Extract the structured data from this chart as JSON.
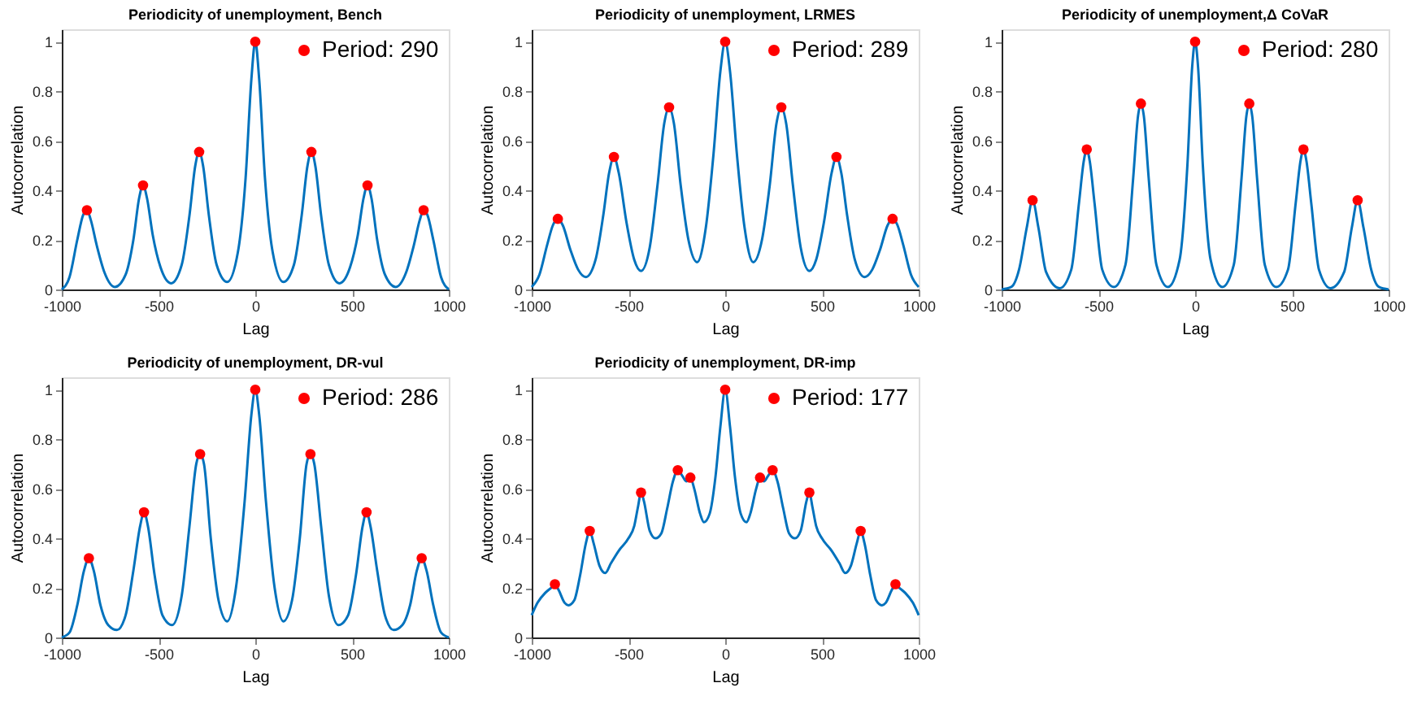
{
  "chart_data": [
    {
      "type": "line",
      "title": "Periodicity of unemployment, Bench",
      "xlabel": "Lag",
      "ylabel": "Autocorrelation",
      "xlim": [
        -1000,
        1000
      ],
      "xticks": [
        -1000,
        -500,
        0,
        500,
        1000
      ],
      "ylim": [
        0,
        1.05
      ],
      "yticks": [
        0,
        0.2,
        0.4,
        0.6,
        0.8,
        1
      ],
      "grid": false,
      "legend": "top right",
      "series": [
        {
          "type": "line",
          "color": "#0072bd",
          "x": [
            -1000,
            -960,
            -920,
            -890,
            -870,
            -850,
            -820,
            -780,
            -725,
            -670,
            -630,
            -600,
            -580,
            -560,
            -530,
            -490,
            -435,
            -380,
            -340,
            -310,
            -290,
            -270,
            -240,
            -200,
            -145,
            -90,
            -50,
            -20,
            0,
            20,
            50,
            90,
            145,
            200,
            240,
            270,
            290,
            310,
            340,
            380,
            435,
            490,
            530,
            560,
            580,
            600,
            630,
            670,
            725,
            780,
            820,
            850,
            870,
            890,
            920,
            960,
            1000
          ],
          "values": [
            0,
            0.05,
            0.2,
            0.3,
            0.32,
            0.28,
            0.18,
            0.07,
            0.01,
            0.06,
            0.2,
            0.37,
            0.42,
            0.37,
            0.22,
            0.09,
            0.025,
            0.1,
            0.3,
            0.5,
            0.555,
            0.5,
            0.3,
            0.1,
            0.03,
            0.15,
            0.45,
            0.85,
            1,
            0.85,
            0.45,
            0.15,
            0.03,
            0.1,
            0.3,
            0.5,
            0.555,
            0.5,
            0.3,
            0.1,
            0.025,
            0.09,
            0.22,
            0.37,
            0.42,
            0.37,
            0.2,
            0.06,
            0.01,
            0.07,
            0.18,
            0.28,
            0.32,
            0.3,
            0.2,
            0.05,
            0
          ]
        },
        {
          "type": "scatter",
          "name": "Period: 290",
          "color": "#ff0000",
          "marker": "circle",
          "x": [
            -870,
            -580,
            -290,
            0,
            290,
            580,
            870
          ],
          "values": [
            0.32,
            0.42,
            0.555,
            1,
            0.555,
            0.42,
            0.32
          ]
        }
      ]
    },
    {
      "type": "line",
      "title": "Periodicity of unemployment, LRMES",
      "xlabel": "Lag",
      "ylabel": "Autocorrelation",
      "xlim": [
        -1000,
        1000
      ],
      "xticks": [
        -1000,
        -500,
        0,
        500,
        1000
      ],
      "ylim": [
        0,
        1.05
      ],
      "yticks": [
        0,
        0.2,
        0.4,
        0.6,
        0.8,
        1
      ],
      "grid": false,
      "legend": "top right",
      "series": [
        {
          "type": "line",
          "color": "#0072bd",
          "x": [
            -1000,
            -960,
            -920,
            -890,
            -865,
            -840,
            -800,
            -760,
            -720,
            -670,
            -630,
            -600,
            -575,
            -550,
            -510,
            -470,
            -435,
            -390,
            -350,
            -315,
            -290,
            -265,
            -230,
            -190,
            -145,
            -100,
            -60,
            -25,
            0,
            25,
            60,
            100,
            145,
            190,
            230,
            265,
            290,
            315,
            350,
            390,
            435,
            470,
            510,
            550,
            575,
            600,
            630,
            670,
            720,
            760,
            800,
            840,
            865,
            890,
            920,
            960,
            1000
          ],
          "values": [
            0.01,
            0.06,
            0.18,
            0.26,
            0.285,
            0.26,
            0.16,
            0.08,
            0.05,
            0.12,
            0.3,
            0.47,
            0.535,
            0.47,
            0.27,
            0.12,
            0.075,
            0.17,
            0.42,
            0.67,
            0.735,
            0.67,
            0.42,
            0.2,
            0.11,
            0.25,
            0.55,
            0.88,
            1,
            0.88,
            0.55,
            0.25,
            0.11,
            0.2,
            0.42,
            0.67,
            0.735,
            0.67,
            0.42,
            0.17,
            0.075,
            0.12,
            0.27,
            0.47,
            0.535,
            0.47,
            0.3,
            0.12,
            0.05,
            0.08,
            0.16,
            0.26,
            0.285,
            0.26,
            0.18,
            0.06,
            0.01
          ]
        },
        {
          "type": "scatter",
          "name": "Period: 289",
          "color": "#ff0000",
          "marker": "circle",
          "x": [
            -865,
            -575,
            -290,
            0,
            290,
            575,
            865
          ],
          "values": [
            0.285,
            0.535,
            0.735,
            1,
            0.735,
            0.535,
            0.285
          ]
        }
      ]
    },
    {
      "type": "line",
      "title": "Periodicity of unemployment,Δ CoVaR",
      "xlabel": "Lag",
      "ylabel": "Autocorrelation",
      "xlim": [
        -1000,
        1000
      ],
      "xticks": [
        -1000,
        -500,
        0,
        500,
        1000
      ],
      "ylim": [
        0,
        1.05
      ],
      "yticks": [
        0,
        0.2,
        0.4,
        0.6,
        0.8,
        1
      ],
      "grid": false,
      "legend": "top right",
      "series": [
        {
          "type": "line",
          "color": "#0072bd",
          "x": [
            -1000,
            -950,
            -910,
            -870,
            -840,
            -810,
            -770,
            -700,
            -640,
            -600,
            -575,
            -560,
            -545,
            -520,
            -480,
            -420,
            -360,
            -320,
            -295,
            -280,
            -265,
            -240,
            -200,
            -140,
            -80,
            -40,
            -15,
            0,
            15,
            40,
            80,
            140,
            200,
            240,
            265,
            280,
            295,
            320,
            360,
            420,
            480,
            520,
            545,
            560,
            575,
            600,
            640,
            700,
            770,
            810,
            840,
            870,
            910,
            950,
            1000
          ],
          "values": [
            0,
            0.01,
            0.08,
            0.25,
            0.36,
            0.25,
            0.07,
            0.005,
            0.08,
            0.35,
            0.52,
            0.565,
            0.52,
            0.35,
            0.08,
            0.01,
            0.1,
            0.45,
            0.7,
            0.75,
            0.7,
            0.45,
            0.1,
            0.01,
            0.12,
            0.5,
            0.9,
            1,
            0.9,
            0.5,
            0.12,
            0.01,
            0.1,
            0.45,
            0.7,
            0.75,
            0.7,
            0.45,
            0.1,
            0.01,
            0.08,
            0.35,
            0.52,
            0.565,
            0.52,
            0.35,
            0.08,
            0.005,
            0.07,
            0.25,
            0.36,
            0.25,
            0.08,
            0.01,
            0
          ]
        },
        {
          "type": "scatter",
          "name": "Period: 280",
          "color": "#ff0000",
          "marker": "circle",
          "x": [
            -840,
            -560,
            -280,
            0,
            280,
            560,
            840
          ],
          "values": [
            0.36,
            0.565,
            0.75,
            1,
            0.75,
            0.565,
            0.36
          ]
        }
      ]
    },
    {
      "type": "line",
      "title": "Periodicity of unemployment, DR-vul",
      "xlabel": "Lag",
      "ylabel": "Autocorrelation",
      "xlim": [
        -1000,
        1000
      ],
      "xticks": [
        -1000,
        -500,
        0,
        500,
        1000
      ],
      "ylim": [
        0,
        1.05
      ],
      "yticks": [
        0,
        0.2,
        0.4,
        0.6,
        0.8,
        1
      ],
      "grid": false,
      "legend": "top right",
      "series": [
        {
          "type": "line",
          "color": "#0072bd",
          "x": [
            -1000,
            -960,
            -920,
            -885,
            -860,
            -835,
            -800,
            -760,
            -715,
            -670,
            -630,
            -595,
            -575,
            -555,
            -520,
            -480,
            -430,
            -380,
            -340,
            -305,
            -285,
            -265,
            -230,
            -190,
            -145,
            -100,
            -55,
            -20,
            0,
            20,
            55,
            100,
            145,
            190,
            230,
            265,
            285,
            305,
            340,
            380,
            430,
            480,
            520,
            555,
            575,
            595,
            630,
            670,
            715,
            760,
            800,
            835,
            860,
            885,
            920,
            960,
            1000
          ],
          "values": [
            0,
            0.02,
            0.13,
            0.27,
            0.32,
            0.27,
            0.13,
            0.05,
            0.03,
            0.09,
            0.27,
            0.45,
            0.505,
            0.45,
            0.25,
            0.09,
            0.05,
            0.17,
            0.45,
            0.7,
            0.74,
            0.7,
            0.4,
            0.15,
            0.065,
            0.2,
            0.55,
            0.9,
            1,
            0.9,
            0.55,
            0.2,
            0.065,
            0.15,
            0.4,
            0.7,
            0.74,
            0.7,
            0.45,
            0.17,
            0.05,
            0.09,
            0.25,
            0.45,
            0.505,
            0.45,
            0.27,
            0.09,
            0.03,
            0.05,
            0.13,
            0.27,
            0.32,
            0.27,
            0.13,
            0.02,
            0
          ]
        },
        {
          "type": "scatter",
          "name": "Period: 286",
          "color": "#ff0000",
          "marker": "circle",
          "x": [
            -860,
            -575,
            -285,
            0,
            285,
            575,
            860
          ],
          "values": [
            0.32,
            0.505,
            0.74,
            1,
            0.74,
            0.505,
            0.32
          ]
        }
      ]
    },
    {
      "type": "line",
      "title": "Periodicity of unemployment, DR-imp",
      "xlabel": "Lag",
      "ylabel": "Autocorrelation",
      "xlim": [
        -1000,
        1000
      ],
      "xticks": [
        -1000,
        -500,
        0,
        500,
        1000
      ],
      "ylim": [
        0,
        1.05
      ],
      "yticks": [
        0,
        0.2,
        0.4,
        0.6,
        0.8,
        1
      ],
      "grid": false,
      "legend": "top right",
      "series": [
        {
          "type": "line",
          "color": "#0072bd",
          "x": [
            -1000,
            -970,
            -930,
            -900,
            -880,
            -860,
            -830,
            -810,
            -780,
            -750,
            -720,
            -700,
            -680,
            -650,
            -620,
            -590,
            -550,
            -500,
            -470,
            -450,
            -435,
            -420,
            -390,
            -360,
            -330,
            -300,
            -270,
            -245,
            -220,
            -200,
            -180,
            -160,
            -130,
            -110,
            -80,
            -50,
            -25,
            0,
            25,
            50,
            80,
            110,
            130,
            160,
            180,
            200,
            220,
            245,
            270,
            300,
            330,
            360,
            390,
            420,
            435,
            450,
            470,
            500,
            550,
            590,
            620,
            650,
            680,
            700,
            720,
            750,
            780,
            810,
            830,
            860,
            880,
            900,
            930,
            970,
            1000
          ],
          "values": [
            0.09,
            0.14,
            0.18,
            0.2,
            0.215,
            0.19,
            0.14,
            0.13,
            0.15,
            0.25,
            0.38,
            0.43,
            0.38,
            0.29,
            0.26,
            0.3,
            0.35,
            0.4,
            0.45,
            0.53,
            0.585,
            0.55,
            0.43,
            0.4,
            0.42,
            0.52,
            0.63,
            0.675,
            0.65,
            0.63,
            0.645,
            0.6,
            0.5,
            0.465,
            0.5,
            0.65,
            0.85,
            1,
            0.85,
            0.65,
            0.5,
            0.465,
            0.5,
            0.6,
            0.645,
            0.63,
            0.65,
            0.675,
            0.63,
            0.52,
            0.42,
            0.4,
            0.43,
            0.55,
            0.585,
            0.53,
            0.45,
            0.4,
            0.35,
            0.3,
            0.26,
            0.29,
            0.38,
            0.43,
            0.38,
            0.25,
            0.15,
            0.13,
            0.14,
            0.19,
            0.215,
            0.2,
            0.18,
            0.14,
            0.09
          ]
        },
        {
          "type": "scatter",
          "name": "Period: 177",
          "color": "#ff0000",
          "marker": "circle",
          "x": [
            -880,
            -700,
            -435,
            -245,
            -180,
            0,
            180,
            245,
            435,
            700,
            880
          ],
          "values": [
            0.215,
            0.43,
            0.585,
            0.675,
            0.645,
            1,
            0.645,
            0.675,
            0.585,
            0.43,
            0.215
          ]
        }
      ]
    }
  ]
}
